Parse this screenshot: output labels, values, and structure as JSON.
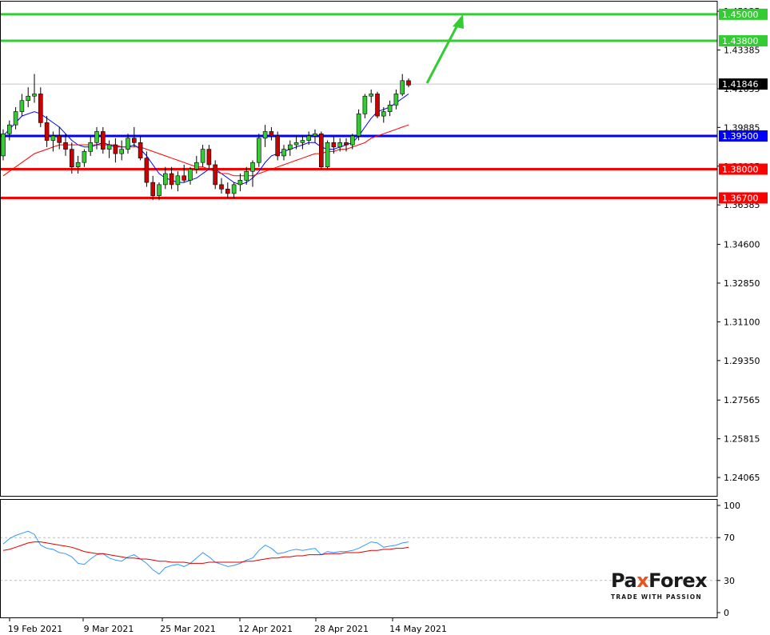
{
  "chart_data": [
    {
      "type": "candlestick",
      "panel": "price",
      "y_axis_ticks": [
        "1.45135",
        "1.43385",
        "1.41635",
        "1.39885",
        "1.38135",
        "1.36385",
        "1.34600",
        "1.32850",
        "1.31100",
        "1.29350",
        "1.27565",
        "1.25815",
        "1.24065"
      ],
      "ylim": [
        1.232,
        1.455
      ],
      "x_axis_labels": [
        "19 Feb 2021",
        "9 Mar 2021",
        "25 Mar 2021",
        "12 Apr 2021",
        "28 Apr 2021",
        "14 May 2021"
      ],
      "current_price": {
        "value": 1.41846,
        "label": "1.41846"
      },
      "levels": [
        {
          "value": 1.45,
          "label": "1.45000",
          "color": "#33cc33"
        },
        {
          "value": 1.438,
          "label": "1.43800",
          "color": "#33cc33"
        },
        {
          "value": 1.395,
          "label": "1.39500",
          "color": "#0000ff"
        },
        {
          "value": 1.38,
          "label": "1.38000",
          "color": "#ff0000"
        },
        {
          "value": 1.367,
          "label": "1.36700",
          "color": "#ff0000"
        }
      ],
      "candles": [
        [
          1.386,
          1.398,
          1.384,
          1.396
        ],
        [
          1.396,
          1.402,
          1.393,
          1.4
        ],
        [
          1.4,
          1.408,
          1.398,
          1.406
        ],
        [
          1.406,
          1.414,
          1.404,
          1.411
        ],
        [
          1.411,
          1.417,
          1.408,
          1.413
        ],
        [
          1.413,
          1.423,
          1.41,
          1.414
        ],
        [
          1.414,
          1.417,
          1.399,
          1.401
        ],
        [
          1.401,
          1.404,
          1.39,
          1.393
        ],
        [
          1.393,
          1.397,
          1.388,
          1.395
        ],
        [
          1.395,
          1.399,
          1.389,
          1.392
        ],
        [
          1.392,
          1.396,
          1.386,
          1.389
        ],
        [
          1.389,
          1.392,
          1.378,
          1.381
        ],
        [
          1.381,
          1.386,
          1.378,
          1.383
        ],
        [
          1.383,
          1.389,
          1.381,
          1.388
        ],
        [
          1.388,
          1.395,
          1.386,
          1.392
        ],
        [
          1.392,
          1.399,
          1.389,
          1.397
        ],
        [
          1.397,
          1.399,
          1.387,
          1.389
        ],
        [
          1.389,
          1.393,
          1.385,
          1.391
        ],
        [
          1.391,
          1.394,
          1.383,
          1.387
        ],
        [
          1.387,
          1.393,
          1.384,
          1.389
        ],
        [
          1.389,
          1.396,
          1.387,
          1.394
        ],
        [
          1.394,
          1.399,
          1.39,
          1.392
        ],
        [
          1.392,
          1.395,
          1.384,
          1.385
        ],
        [
          1.385,
          1.388,
          1.372,
          1.374
        ],
        [
          1.374,
          1.377,
          1.366,
          1.368
        ],
        [
          1.368,
          1.374,
          1.366,
          1.373
        ],
        [
          1.373,
          1.381,
          1.371,
          1.378
        ],
        [
          1.378,
          1.381,
          1.371,
          1.373
        ],
        [
          1.373,
          1.379,
          1.37,
          1.377
        ],
        [
          1.377,
          1.382,
          1.374,
          1.375
        ],
        [
          1.375,
          1.381,
          1.373,
          1.38
        ],
        [
          1.38,
          1.386,
          1.378,
          1.383
        ],
        [
          1.383,
          1.391,
          1.381,
          1.389
        ],
        [
          1.389,
          1.391,
          1.38,
          1.382
        ],
        [
          1.382,
          1.384,
          1.371,
          1.373
        ],
        [
          1.373,
          1.376,
          1.369,
          1.371
        ],
        [
          1.371,
          1.374,
          1.367,
          1.369
        ],
        [
          1.369,
          1.374,
          1.367,
          1.373
        ],
        [
          1.373,
          1.378,
          1.37,
          1.375
        ],
        [
          1.375,
          1.381,
          1.373,
          1.379
        ],
        [
          1.379,
          1.384,
          1.372,
          1.383
        ],
        [
          1.383,
          1.396,
          1.381,
          1.394
        ],
        [
          1.394,
          1.4,
          1.39,
          1.397
        ],
        [
          1.397,
          1.399,
          1.393,
          1.395
        ],
        [
          1.395,
          1.397,
          1.384,
          1.386
        ],
        [
          1.386,
          1.391,
          1.384,
          1.389
        ],
        [
          1.389,
          1.393,
          1.386,
          1.391
        ],
        [
          1.391,
          1.395,
          1.389,
          1.392
        ],
        [
          1.392,
          1.395,
          1.389,
          1.393
        ],
        [
          1.393,
          1.397,
          1.391,
          1.395
        ],
        [
          1.395,
          1.398,
          1.392,
          1.396
        ],
        [
          1.396,
          1.397,
          1.38,
          1.381
        ],
        [
          1.381,
          1.393,
          1.38,
          1.392
        ],
        [
          1.392,
          1.395,
          1.387,
          1.39
        ],
        [
          1.39,
          1.394,
          1.388,
          1.392
        ],
        [
          1.392,
          1.394,
          1.388,
          1.391
        ],
        [
          1.391,
          1.396,
          1.389,
          1.395
        ],
        [
          1.395,
          1.407,
          1.393,
          1.405
        ],
        [
          1.405,
          1.414,
          1.403,
          1.413
        ],
        [
          1.413,
          1.416,
          1.41,
          1.414
        ],
        [
          1.414,
          1.415,
          1.403,
          1.404
        ],
        [
          1.404,
          1.408,
          1.401,
          1.406
        ],
        [
          1.406,
          1.411,
          1.404,
          1.409
        ],
        [
          1.409,
          1.416,
          1.407,
          1.414
        ],
        [
          1.414,
          1.423,
          1.413,
          1.42
        ],
        [
          1.42,
          1.421,
          1.417,
          1.418
        ]
      ],
      "overlays": [
        {
          "name": "",
          "color": "#0000ff",
          "values": [
            1.395,
            1.398,
            1.401,
            1.404,
            1.405,
            1.406,
            1.405,
            1.403,
            1.401,
            1.399,
            1.396,
            1.393,
            1.391,
            1.39,
            1.39,
            1.391,
            1.392,
            1.391,
            1.39,
            1.39,
            1.39,
            1.391,
            1.389,
            1.386,
            1.382,
            1.378,
            1.376,
            1.375,
            1.374,
            1.374,
            1.375,
            1.376,
            1.378,
            1.38,
            1.38,
            1.378,
            1.376,
            1.374,
            1.373,
            1.374,
            1.376,
            1.379,
            1.383,
            1.386,
            1.387,
            1.388,
            1.389,
            1.39,
            1.391,
            1.392,
            1.392,
            1.39,
            1.389,
            1.389,
            1.39,
            1.391,
            1.392,
            1.395,
            1.399,
            1.403,
            1.406,
            1.407,
            1.408,
            1.41,
            1.412,
            1.414
          ]
        },
        {
          "name": "",
          "color": "#ff0000",
          "values": [
            1.377,
            1.379,
            1.381,
            1.383,
            1.385,
            1.387,
            1.388,
            1.389,
            1.39,
            1.391,
            1.391,
            1.391,
            1.391,
            1.391,
            1.391,
            1.391,
            1.391,
            1.391,
            1.391,
            1.39,
            1.39,
            1.39,
            1.39,
            1.389,
            1.388,
            1.387,
            1.386,
            1.385,
            1.384,
            1.383,
            1.382,
            1.381,
            1.381,
            1.38,
            1.379,
            1.378,
            1.378,
            1.377,
            1.377,
            1.377,
            1.377,
            1.378,
            1.379,
            1.38,
            1.381,
            1.382,
            1.383,
            1.384,
            1.385,
            1.386,
            1.387,
            1.387,
            1.388,
            1.388,
            1.389,
            1.389,
            1.39,
            1.391,
            1.392,
            1.394,
            1.395,
            1.396,
            1.397,
            1.398,
            1.399,
            1.4
          ]
        }
      ]
    },
    {
      "type": "line",
      "panel": "oscillator",
      "ylim": [
        0,
        100
      ],
      "y_axis_ticks": [
        "100",
        "70",
        "30",
        "0"
      ],
      "dashed_levels": [
        70,
        30
      ],
      "series": [
        {
          "name": "",
          "color": "#3399ff",
          "values": [
            64,
            69,
            72,
            74,
            76,
            73,
            63,
            60,
            59,
            56,
            55,
            52,
            46,
            45,
            50,
            54,
            55,
            51,
            49,
            48,
            52,
            54,
            50,
            46,
            40,
            36,
            42,
            44,
            45,
            43,
            46,
            51,
            56,
            52,
            47,
            45,
            43,
            44,
            46,
            49,
            51,
            58,
            63,
            60,
            55,
            56,
            58,
            59,
            58,
            59,
            60,
            54,
            57,
            56,
            57,
            57,
            58,
            60,
            63,
            66,
            65,
            61,
            62,
            63,
            65,
            66
          ]
        },
        {
          "name": "",
          "color": "#dd0000",
          "values": [
            58,
            59,
            61,
            63,
            65,
            66,
            66,
            65,
            64,
            63,
            62,
            61,
            59,
            57,
            56,
            55,
            55,
            54,
            53,
            52,
            51,
            51,
            50,
            50,
            49,
            48,
            48,
            47,
            47,
            47,
            46,
            46,
            46,
            47,
            47,
            47,
            47,
            47,
            47,
            48,
            48,
            49,
            50,
            51,
            51,
            52,
            52,
            53,
            53,
            54,
            54,
            54,
            55,
            55,
            55,
            56,
            56,
            56,
            57,
            58,
            58,
            59,
            59,
            60,
            60,
            61
          ]
        }
      ]
    }
  ],
  "branding": {
    "name_part1": "Pa",
    "name_x": "x",
    "name_part2": "Forex",
    "tagline": "TRADE WITH PASSION"
  }
}
